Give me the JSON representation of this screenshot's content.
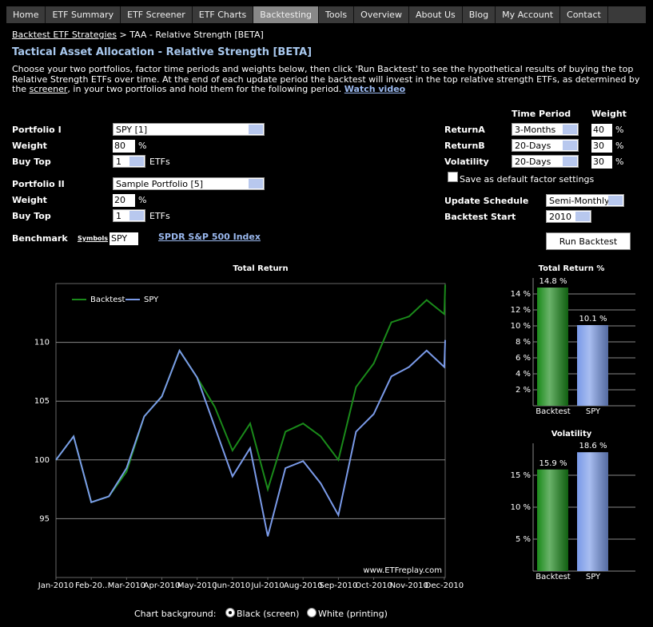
{
  "nav": [
    "Home",
    "ETF Summary",
    "ETF Screener",
    "ETF Charts",
    "Backtesting",
    "Tools",
    "Overview",
    "About Us",
    "Blog",
    "My Account",
    "Contact"
  ],
  "breadcrumb": {
    "link": "Backtest ETF Strategies",
    "rest": "> TAA - Relative Strength [BETA]"
  },
  "title": "Tactical Asset Allocation - Relative Strength [BETA]",
  "intro": {
    "text1": "Choose your two portfolios, factor time periods and weights below, then click 'Run Backtest' to see the hypothetical results of buying the top Relative Strength ETFs over time. At the end of each update period the backtest will invest in the top relative strength ETFs, as determined by the",
    "link": "screener",
    "text2": ", in your two portfolios and hold them for the following period.",
    "video": "Watch video"
  },
  "portfolios": [
    {
      "label": "Portfolio I",
      "select": "SPY [1]",
      "weight_label": "Weight",
      "weight": "80",
      "pct": "%",
      "buy_label": "Buy Top",
      "buy": "1",
      "etfs": "ETFs"
    },
    {
      "label": "Portfolio II",
      "select": "Sample Portfolio [5]",
      "weight_label": "Weight",
      "weight": "20",
      "pct": "%",
      "buy_label": "Buy Top",
      "buy": "1",
      "etfs": "ETFs"
    }
  ],
  "benchmark": {
    "label": "Benchmark",
    "symbols": "Symbols",
    "value": "SPY",
    "link": "SPDR S&P 500 Index"
  },
  "factors": {
    "headers": [
      "Time Period",
      "Weight"
    ],
    "rows": [
      {
        "label": "ReturnA",
        "period": "3-Months",
        "weight": "40",
        "pct": "%"
      },
      {
        "label": "ReturnB",
        "period": "20-Days",
        "weight": "30",
        "pct": "%"
      },
      {
        "label": "Volatility",
        "period": "20-Days",
        "weight": "30",
        "pct": "%"
      }
    ],
    "save_default": "Save as default factor settings"
  },
  "schedule": {
    "label": "Update Schedule",
    "value": "Semi-Monthly"
  },
  "start": {
    "label": "Backtest Start",
    "value": "2010"
  },
  "run_button": "Run Backtest",
  "footer": {
    "label": "Chart background:",
    "black": "Black (screen)",
    "white": "White (printing)"
  },
  "chart_data": [
    {
      "type": "line",
      "title": "Total Return",
      "annotation": "www.ETFreplay.com",
      "legend": "upper left",
      "grid": true,
      "x": [
        0,
        1,
        2,
        3,
        4,
        5,
        6,
        7,
        8,
        9,
        10,
        11,
        12,
        13,
        14,
        15,
        16,
        17,
        18,
        19,
        20,
        21,
        22,
        22.05
      ],
      "xlim": [
        0,
        22.05
      ],
      "xticks": [
        {
          "value": 0,
          "label": "Jan-2010"
        },
        {
          "value": 2,
          "label": "Feb-20.."
        },
        {
          "value": 4,
          "label": "Mar-2010"
        },
        {
          "value": 6,
          "label": "Apr-2010"
        },
        {
          "value": 8,
          "label": "May-2010"
        },
        {
          "value": 10,
          "label": "Jun-2010"
        },
        {
          "value": 12,
          "label": "Jul-2010"
        },
        {
          "value": 14,
          "label": "Aug-2010"
        },
        {
          "value": 16,
          "label": "Sep-2010"
        },
        {
          "value": 18,
          "label": "Oct-2010"
        },
        {
          "value": 20,
          "label": "Nov-2010"
        },
        {
          "value": 22,
          "label": "Dec-2010"
        }
      ],
      "ylim": [
        90,
        115
      ],
      "yticks": [
        95,
        100,
        105,
        110
      ],
      "series": [
        {
          "name": "Backtest",
          "color": "#1a8a1a",
          "values": [
            100,
            102,
            96.4,
            96.9,
            99.0,
            103.7,
            105.4,
            109.3,
            107.0,
            104.5,
            100.8,
            103.1,
            97.5,
            102.4,
            103.1,
            102.0,
            100.0,
            106.2,
            108.2,
            111.7,
            112.2,
            113.6,
            112.4,
            114.9
          ]
        },
        {
          "name": "SPY",
          "color": "#7a9ae8",
          "values": [
            100,
            102,
            96.4,
            96.9,
            99.3,
            103.7,
            105.4,
            109.3,
            107.0,
            102.8,
            98.6,
            101.0,
            93.5,
            99.3,
            99.9,
            98.0,
            95.3,
            102.4,
            103.9,
            107.1,
            107.9,
            109.3,
            107.9,
            110.2
          ]
        }
      ]
    },
    {
      "type": "bar",
      "title": "Total Return %",
      "categories": [
        "Backtest",
        "SPY"
      ],
      "values": [
        14.8,
        10.1
      ],
      "value_labels": [
        "14.8 %",
        "10.1 %"
      ],
      "colors": [
        "#1a8a1a",
        "#7a9ae8"
      ],
      "grid": true,
      "ylim": [
        0,
        16
      ],
      "yticks": [
        {
          "value": 2,
          "label": "2 %"
        },
        {
          "value": 4,
          "label": "4 %"
        },
        {
          "value": 6,
          "label": "6 %"
        },
        {
          "value": 8,
          "label": "8 %"
        },
        {
          "value": 10,
          "label": "10 %"
        },
        {
          "value": 12,
          "label": "12 %"
        },
        {
          "value": 14,
          "label": "14 %"
        }
      ]
    },
    {
      "type": "bar",
      "title": "Volatility",
      "categories": [
        "Backtest",
        "SPY"
      ],
      "values": [
        15.9,
        18.6
      ],
      "value_labels": [
        "15.9 %",
        "18.6 %"
      ],
      "colors": [
        "#1a8a1a",
        "#7a9ae8"
      ],
      "grid": true,
      "ylim": [
        0,
        20
      ],
      "yticks": [
        {
          "value": 5,
          "label": "5 %"
        },
        {
          "value": 10,
          "label": "10 %"
        },
        {
          "value": 15,
          "label": "15 %"
        }
      ]
    }
  ]
}
